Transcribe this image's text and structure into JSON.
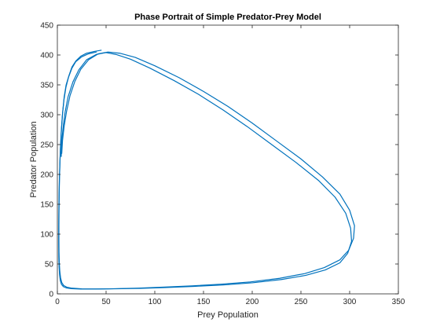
{
  "chart_data": {
    "type": "line",
    "title": "Phase Portrait of Simple Predator-Prey Model",
    "xlabel": "Prey Population",
    "ylabel": "Predator Population",
    "xlim": [
      0,
      350
    ],
    "ylim": [
      0,
      450
    ],
    "xticks": [
      0,
      50,
      100,
      150,
      200,
      250,
      300,
      350
    ],
    "yticks": [
      0,
      50,
      100,
      150,
      200,
      250,
      300,
      350,
      400,
      450
    ],
    "grid": false,
    "legend": "none",
    "line_color": "#0072BD",
    "series": [
      {
        "x": [
          45,
          38,
          30,
          24,
          19,
          15,
          12,
          9,
          7,
          5.5,
          4.3,
          3.4,
          2.7,
          2.2,
          1.9,
          1.7,
          1.6,
          1.6,
          1.7,
          2.0,
          2.5,
          3.3,
          4.5,
          6.5,
          10,
          15,
          25,
          40,
          60,
          85,
          110,
          140,
          170,
          200,
          230,
          255,
          275,
          290,
          298,
          302,
          301,
          296,
          285,
          268,
          245,
          220,
          195,
          170,
          145,
          120,
          95,
          75,
          60,
          50,
          40,
          30,
          22,
          16,
          11,
          8,
          6,
          4.5,
          4
        ],
        "y": [
          408,
          406,
          403,
          398,
          390,
          380,
          366,
          350,
          330,
          305,
          278,
          250,
          222,
          195,
          168,
          140,
          115,
          90,
          70,
          52,
          38,
          27,
          19,
          14,
          11,
          9.5,
          8.5,
          8.2,
          8.5,
          9.2,
          10.5,
          12.5,
          15,
          18.5,
          24,
          31,
          40,
          52,
          68,
          88,
          110,
          135,
          162,
          190,
          220,
          250,
          280,
          308,
          334,
          357,
          378,
          393,
          401,
          404,
          401,
          392,
          375,
          355,
          330,
          305,
          280,
          255,
          230
        ]
      },
      {
        "x": [
          40,
          32,
          25,
          19,
          15,
          11.5,
          8.8,
          6.8,
          5.2,
          4.0,
          3.1,
          2.5,
          2.0,
          1.7,
          1.5,
          1.4,
          1.4,
          1.5,
          1.8,
          2.3,
          3.0,
          4.2,
          6.2,
          9.5,
          14.5,
          24,
          39,
          58,
          83,
          108,
          138,
          168,
          198,
          228,
          254,
          274,
          290,
          299,
          304,
          305,
          300,
          290,
          272,
          250,
          225,
          200,
          175,
          150,
          125,
          100,
          80,
          64,
          52,
          42,
          32,
          24,
          18,
          13,
          9.5,
          7,
          5.3,
          4.5
        ],
        "y": [
          405,
          402,
          397,
          389,
          378,
          363,
          346,
          325,
          300,
          272,
          243,
          214,
          186,
          158,
          131,
          106,
          82,
          62,
          45,
          32,
          22.5,
          16,
          12,
          9.8,
          8.7,
          8,
          8,
          8.6,
          9.6,
          11.2,
          13.4,
          16.2,
          20,
          26,
          34,
          44,
          57,
          73,
          93,
          114,
          140,
          167,
          196,
          226,
          256,
          286,
          314,
          339,
          362,
          382,
          396,
          403,
          405,
          402,
          392,
          376,
          356,
          332,
          306,
          281,
          257,
          235
        ]
      }
    ]
  }
}
